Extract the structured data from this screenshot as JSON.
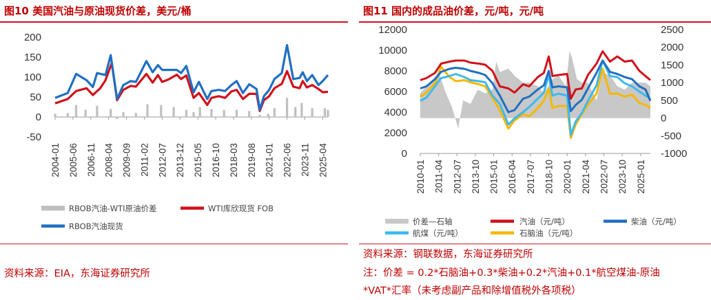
{
  "figures": [
    {
      "title": "图10  美国汽油与原油现货价差，美元/桶",
      "source": "资料来源：EIA，东海证券研究所",
      "legend": [
        "RBOB汽油-WTI原油价差",
        "WTI库欣现货 FOB",
        "RBOB汽油现货"
      ],
      "colors": {
        "spread": "#bfbfbf",
        "wti": "#d0101a",
        "rbob": "#1f6fc2"
      }
    },
    {
      "title": "图11  国内的成品油价差，元/吨，元/吨",
      "source": "资料来源：钢联数据，东海证券研究所",
      "note_line1": "注：价差 = 0.2*石脑油+0.3*柴油+0.2*汽油+0.1*航空煤油-原油",
      "note_line2": "*VAT*汇率（未考虑副产品和除增值税外各项税）",
      "legend": [
        "价差—石轴",
        "汽油（元/吨）",
        "柴油（元/吨）",
        "航煤（元/吨）",
        "石脑油（元/吨）"
      ],
      "colors": {
        "spread": "#c8c8c8",
        "gasoline": "#d0101a",
        "diesel": "#1f6fc2",
        "jet": "#3db8ee",
        "naphtha": "#f5b800"
      }
    }
  ],
  "chart_data": [
    {
      "type": "line",
      "title": "图10  美国汽油与原油现货价差，美元/桶",
      "x_tick_labels": [
        "2004-01",
        "2005-06",
        "2006-11",
        "2008-04",
        "2009-09",
        "2011-02",
        "2012-07",
        "2013-12",
        "2015-05",
        "2016-10",
        "2018-03",
        "2019-08",
        "2021-01",
        "2022-06",
        "2023-11",
        "2025-04"
      ],
      "x_range": [
        "2004-01",
        "2025-09"
      ],
      "ylim": [
        -50,
        200
      ],
      "y_ticks": [
        -50,
        0,
        50,
        100,
        150,
        200
      ],
      "legend_position": "bottom",
      "series": [
        {
          "name": "RBOB汽油-WTI原油价差",
          "kind": "bar",
          "x": [
            "2004-01",
            "2005-01",
            "2005-09",
            "2006-06",
            "2007-05",
            "2008-06",
            "2008-12",
            "2009-06",
            "2010-06",
            "2011-05",
            "2012-06",
            "2013-06",
            "2014-06",
            "2015-01",
            "2015-07",
            "2016-06",
            "2017-06",
            "2018-06",
            "2019-06",
            "2020-04",
            "2020-12",
            "2021-06",
            "2022-06",
            "2023-02",
            "2023-08",
            "2024-06",
            "2025-06",
            "2025-09"
          ],
          "values": [
            8,
            10,
            30,
            18,
            28,
            20,
            -5,
            12,
            10,
            32,
            30,
            25,
            18,
            12,
            25,
            20,
            18,
            18,
            15,
            5,
            8,
            22,
            48,
            25,
            35,
            22,
            22,
            18
          ]
        },
        {
          "name": "WTI库欣现货 FOB",
          "kind": "line",
          "x": [
            "2004-01",
            "2005-01",
            "2005-09",
            "2006-07",
            "2007-01",
            "2007-08",
            "2008-01",
            "2008-07",
            "2008-12",
            "2009-06",
            "2010-01",
            "2010-06",
            "2011-04",
            "2011-10",
            "2012-03",
            "2012-07",
            "2013-01",
            "2013-09",
            "2014-01",
            "2014-06",
            "2015-01",
            "2015-06",
            "2016-02",
            "2016-06",
            "2017-01",
            "2017-07",
            "2018-01",
            "2018-06",
            "2018-12",
            "2019-06",
            "2020-01",
            "2020-04",
            "2020-08",
            "2021-01",
            "2021-06",
            "2022-01",
            "2022-06",
            "2022-12",
            "2023-06",
            "2023-09",
            "2024-01",
            "2024-06",
            "2024-12",
            "2025-04",
            "2025-09"
          ],
          "values": [
            34,
            45,
            65,
            72,
            55,
            72,
            92,
            135,
            42,
            68,
            78,
            76,
            108,
            86,
            105,
            88,
            94,
            106,
            95,
            104,
            48,
            60,
            30,
            48,
            52,
            48,
            64,
            68,
            45,
            58,
            58,
            15,
            42,
            52,
            72,
            83,
            115,
            76,
            72,
            90,
            74,
            80,
            70,
            62,
            63
          ]
        },
        {
          "name": "RBOB汽油现货",
          "kind": "line",
          "x": [
            "2004-01",
            "2005-01",
            "2005-09",
            "2006-07",
            "2007-01",
            "2007-05",
            "2008-01",
            "2008-06",
            "2008-12",
            "2009-06",
            "2010-01",
            "2010-06",
            "2011-04",
            "2011-10",
            "2012-03",
            "2012-07",
            "2013-01",
            "2013-09",
            "2014-01",
            "2014-06",
            "2015-01",
            "2015-06",
            "2016-02",
            "2016-06",
            "2017-01",
            "2017-07",
            "2018-01",
            "2018-06",
            "2018-12",
            "2019-06",
            "2020-01",
            "2020-04",
            "2020-08",
            "2021-01",
            "2021-06",
            "2022-01",
            "2022-06",
            "2022-12",
            "2023-06",
            "2023-09",
            "2024-01",
            "2024-06",
            "2024-12",
            "2025-04",
            "2025-09"
          ],
          "values": [
            48,
            60,
            108,
            92,
            75,
            110,
            105,
            155,
            45,
            80,
            90,
            88,
            140,
            112,
            130,
            118,
            118,
            118,
            110,
            128,
            62,
            88,
            45,
            65,
            68,
            65,
            80,
            90,
            60,
            82,
            70,
            18,
            52,
            68,
            95,
            110,
            180,
            95,
            98,
            112,
            90,
            105,
            80,
            90,
            105
          ]
        }
      ]
    },
    {
      "type": "line",
      "title": "图11  国内的成品油价差，元/吨，元/吨",
      "x_tick_labels": [
        "2010-01",
        "2011-04",
        "2012-07",
        "2013-10",
        "2015-01",
        "2016-04",
        "2017-07",
        "2018-10",
        "2020-01",
        "2021-04",
        "2022-07",
        "2023-10",
        "2025-01"
      ],
      "x_range": [
        "2010-01",
        "2025-09"
      ],
      "ylim_left": [
        0,
        12000
      ],
      "y_ticks_left": [
        0,
        2000,
        4000,
        6000,
        8000,
        10000,
        12000
      ],
      "ylim_right": [
        -1000,
        2500
      ],
      "y_ticks_right": [
        -1000,
        -500,
        0,
        500,
        1000,
        1500,
        2000,
        2500
      ],
      "legend_position": "bottom",
      "series": [
        {
          "name": "价差—石轴",
          "kind": "area",
          "axis": "right",
          "x": [
            "2010-01",
            "2010-06",
            "2010-12",
            "2011-04",
            "2011-10",
            "2012-03",
            "2012-08",
            "2012-12",
            "2013-06",
            "2013-12",
            "2014-06",
            "2014-12",
            "2015-03",
            "2015-06",
            "2016-01",
            "2016-06",
            "2017-01",
            "2017-06",
            "2018-01",
            "2018-06",
            "2019-01",
            "2019-06",
            "2019-12",
            "2020-03",
            "2020-05",
            "2020-09",
            "2021-01",
            "2021-06",
            "2022-01",
            "2022-06",
            "2022-12",
            "2023-06",
            "2023-12",
            "2024-06",
            "2024-12",
            "2025-05",
            "2025-09"
          ],
          "values": [
            700,
            900,
            1100,
            1300,
            700,
            300,
            -300,
            500,
            400,
            800,
            700,
            800,
            1600,
            1300,
            1400,
            1200,
            1000,
            1000,
            900,
            700,
            1100,
            1200,
            900,
            1900,
            1700,
            1100,
            1000,
            1000,
            500,
            1300,
            1200,
            900,
            800,
            1000,
            1000,
            1000,
            900
          ]
        },
        {
          "name": "汽油（元/吨）",
          "kind": "line",
          "axis": "left",
          "x": [
            "2010-01",
            "2010-06",
            "2011-01",
            "2011-06",
            "2012-01",
            "2012-06",
            "2013-01",
            "2013-06",
            "2014-01",
            "2014-06",
            "2014-12",
            "2015-06",
            "2016-01",
            "2016-06",
            "2017-01",
            "2017-06",
            "2018-01",
            "2018-06",
            "2018-10",
            "2019-01",
            "2019-06",
            "2020-01",
            "2020-04",
            "2020-08",
            "2021-01",
            "2021-06",
            "2022-01",
            "2022-06",
            "2022-12",
            "2023-06",
            "2023-12",
            "2024-06",
            "2024-12",
            "2025-05",
            "2025-09"
          ],
          "values": [
            7100,
            7300,
            7800,
            8700,
            8900,
            9000,
            9000,
            8800,
            8700,
            8600,
            8000,
            6500,
            6300,
            5900,
            6700,
            6500,
            7400,
            7800,
            9400,
            7500,
            7600,
            7700,
            5300,
            6200,
            6300,
            7600,
            8700,
            9900,
            8900,
            9400,
            8900,
            9000,
            8000,
            7500,
            7100
          ]
        },
        {
          "name": "柴油（元/吨）",
          "kind": "line",
          "axis": "left",
          "x": [
            "2010-01",
            "2010-06",
            "2011-01",
            "2011-06",
            "2012-01",
            "2012-06",
            "2013-01",
            "2013-06",
            "2014-01",
            "2014-06",
            "2014-12",
            "2015-06",
            "2016-01",
            "2016-06",
            "2017-01",
            "2017-06",
            "2018-01",
            "2018-06",
            "2018-10",
            "2019-01",
            "2019-06",
            "2020-01",
            "2020-04",
            "2020-08",
            "2021-01",
            "2021-06",
            "2022-01",
            "2022-06",
            "2022-12",
            "2023-06",
            "2023-12",
            "2024-06",
            "2024-12",
            "2025-05",
            "2025-09"
          ],
          "values": [
            6300,
            6500,
            7200,
            7900,
            8200,
            8300,
            8200,
            8000,
            7800,
            7600,
            6800,
            5600,
            4000,
            4200,
            5300,
            5500,
            6200,
            6600,
            8000,
            6400,
            6500,
            6400,
            4100,
            4700,
            5200,
            6300,
            7800,
            9000,
            7900,
            7700,
            7400,
            7200,
            6500,
            6200,
            5100
          ]
        },
        {
          "name": "航煤（元/吨）",
          "kind": "line",
          "axis": "left",
          "x": [
            "2010-01",
            "2010-06",
            "2011-01",
            "2011-06",
            "2012-01",
            "2012-06",
            "2013-01",
            "2013-06",
            "2014-01",
            "2014-06",
            "2014-12",
            "2015-06",
            "2016-01",
            "2016-06",
            "2017-01",
            "2017-06",
            "2018-01",
            "2018-06",
            "2018-10",
            "2019-01",
            "2019-06",
            "2020-01",
            "2020-04",
            "2020-08",
            "2021-01",
            "2021-06",
            "2022-01",
            "2022-06",
            "2022-12",
            "2023-06",
            "2023-12",
            "2024-06",
            "2024-12",
            "2025-05",
            "2025-09"
          ],
          "values": [
            5100,
            5400,
            6500,
            7300,
            7500,
            7700,
            7400,
            7100,
            7000,
            6900,
            5600,
            4800,
            2800,
            3400,
            4000,
            4500,
            5300,
            5900,
            7600,
            5600,
            5800,
            5600,
            1800,
            3100,
            3900,
            5100,
            6600,
            9000,
            7500,
            7400,
            6800,
            6500,
            6000,
            5600,
            5300
          ]
        },
        {
          "name": "石脑油（元/吨）",
          "kind": "line",
          "axis": "left",
          "x": [
            "2010-01",
            "2010-06",
            "2011-01",
            "2011-06",
            "2012-01",
            "2012-06",
            "2013-01",
            "2013-06",
            "2014-01",
            "2014-06",
            "2014-12",
            "2015-06",
            "2016-01",
            "2016-06",
            "2017-01",
            "2017-06",
            "2018-01",
            "2018-06",
            "2018-10",
            "2019-01",
            "2019-06",
            "2020-01",
            "2020-04",
            "2020-08",
            "2021-01",
            "2021-06",
            "2022-01",
            "2022-06",
            "2022-12",
            "2023-06",
            "2023-12",
            "2024-06",
            "2024-12",
            "2025-05",
            "2025-09"
          ],
          "values": [
            5500,
            5900,
            6800,
            8400,
            7400,
            7000,
            7100,
            6900,
            6700,
            6500,
            5400,
            4200,
            2400,
            3200,
            3800,
            3600,
            4400,
            5100,
            6300,
            4400,
            4600,
            4600,
            1500,
            2800,
            3800,
            4700,
            5800,
            8200,
            5800,
            5800,
            5500,
            5700,
            4900,
            4700,
            4400
          ]
        }
      ]
    }
  ]
}
